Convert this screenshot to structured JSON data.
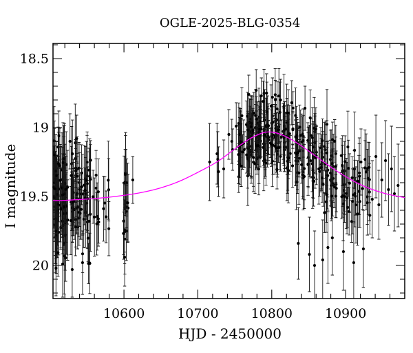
{
  "title": "OGLE-2025-BLG-0354",
  "colors": {
    "background": "#ffffff",
    "frame": "#000000",
    "points": "#000000",
    "error_bars": "#161616",
    "model_curve": "#ff00ff"
  },
  "chart_data": {
    "type": "scatter",
    "title": "OGLE-2025-BLG-0354",
    "xlabel": "HJD - 2450000",
    "ylabel": "I magnitude",
    "xlim": [
      10504,
      10980
    ],
    "ylim": [
      18.39,
      20.24
    ],
    "y_axis_inverted_magnitude": true,
    "grid": false,
    "x_ticks": [
      {
        "v": 10600,
        "label": "10600"
      },
      {
        "v": 10700,
        "label": "10700"
      },
      {
        "v": 10800,
        "label": "10800"
      },
      {
        "v": 10900,
        "label": "10900"
      }
    ],
    "x_minor_step": 20,
    "y_ticks": [
      {
        "v": 18.5,
        "label": "18.5"
      },
      {
        "v": 19,
        "label": "19"
      },
      {
        "v": 19.5,
        "label": "19.5"
      },
      {
        "v": 20,
        "label": "20"
      }
    ],
    "y_minor_step": 0.1,
    "model_curve": {
      "name": "microlensing-model-fit",
      "color": "#ff00ff",
      "baseline_mag": 19.53,
      "peak_mag": 19.03,
      "peak_hjd": 10795,
      "points": [
        [
          10504,
          19.53
        ],
        [
          10520,
          19.528
        ],
        [
          10540,
          19.522
        ],
        [
          10560,
          19.515
        ],
        [
          10580,
          19.505
        ],
        [
          10600,
          19.492
        ],
        [
          10620,
          19.475
        ],
        [
          10640,
          19.452
        ],
        [
          10660,
          19.42
        ],
        [
          10680,
          19.378
        ],
        [
          10700,
          19.325
        ],
        [
          10715,
          19.283
        ],
        [
          10730,
          19.235
        ],
        [
          10745,
          19.175
        ],
        [
          10758,
          19.125
        ],
        [
          10770,
          19.082
        ],
        [
          10780,
          19.055
        ],
        [
          10788,
          19.038
        ],
        [
          10795,
          19.032
        ],
        [
          10802,
          19.034
        ],
        [
          10810,
          19.045
        ],
        [
          10820,
          19.068
        ],
        [
          10830,
          19.098
        ],
        [
          10842,
          19.14
        ],
        [
          10855,
          19.19
        ],
        [
          10870,
          19.248
        ],
        [
          10885,
          19.305
        ],
        [
          10900,
          19.355
        ],
        [
          10915,
          19.4
        ],
        [
          10930,
          19.437
        ],
        [
          10945,
          19.465
        ],
        [
          10960,
          19.487
        ],
        [
          10980,
          19.508
        ]
      ]
    },
    "points": [
      [
        10612,
        19.38,
        0.17
      ],
      [
        10716,
        19.25,
        0.28
      ],
      [
        10726,
        19.19,
        0.22
      ],
      [
        10727,
        19.23,
        0.2
      ],
      [
        10728,
        19.32,
        0.18
      ],
      [
        10735,
        19.3,
        0.21
      ],
      [
        10742,
        19.05,
        0.18
      ],
      [
        10746,
        19.1,
        0.16
      ],
      [
        10747,
        19.16,
        0.15
      ],
      [
        10752,
        18.99,
        0.17
      ],
      [
        10508,
        20.02,
        0.2
      ],
      [
        10517,
        19.99,
        0.24
      ],
      [
        10530,
        20.03,
        0.2
      ],
      [
        10544,
        19.98,
        0.23
      ],
      [
        10601,
        19.94,
        0.21
      ],
      [
        10512,
        19.06,
        0.18
      ],
      [
        10527,
        19.1,
        0.2
      ],
      [
        10536,
        19.08,
        0.17
      ],
      [
        10769,
        18.76,
        0.14
      ],
      [
        10779,
        18.73,
        0.15
      ],
      [
        10786,
        18.77,
        0.13
      ],
      [
        10793,
        18.75,
        0.14
      ],
      [
        10801,
        18.78,
        0.14
      ],
      [
        10812,
        18.8,
        0.15
      ],
      [
        10827,
        18.82,
        0.16
      ],
      [
        10845,
        18.86,
        0.16
      ],
      [
        10836,
        19.84,
        0.26
      ],
      [
        10851,
        19.92,
        0.27
      ],
      [
        10858,
        20.0,
        0.25
      ],
      [
        10869,
        19.96,
        0.29
      ],
      [
        10876,
        19.87,
        0.26
      ],
      [
        10882,
        19.8,
        0.27
      ],
      [
        10897,
        19.9,
        0.28
      ],
      [
        10911,
        19.98,
        0.29
      ],
      [
        10924,
        19.88,
        0.28
      ],
      [
        10936,
        19.52,
        0.28
      ],
      [
        10941,
        19.21,
        0.3
      ],
      [
        10945,
        19.56,
        0.25
      ],
      [
        10949,
        19.38,
        0.27
      ],
      [
        10954,
        19.24,
        0.29
      ],
      [
        10958,
        19.45,
        0.26
      ],
      [
        10962,
        19.3,
        0.31
      ],
      [
        10966,
        19.48,
        0.27
      ],
      [
        10971,
        19.42,
        0.3
      ]
    ],
    "clusters": [
      {
        "t": [
          10505,
          10512
        ],
        "n": 40,
        "sigma": 0.19,
        "err": [
          0.14,
          0.32
        ]
      },
      {
        "t": [
          10513,
          10524
        ],
        "n": 40,
        "sigma": 0.19,
        "err": [
          0.14,
          0.32
        ]
      },
      {
        "t": [
          10528,
          10541
        ],
        "n": 40,
        "sigma": 0.18,
        "err": [
          0.13,
          0.3
        ]
      },
      {
        "t": [
          10542,
          10555
        ],
        "n": 28,
        "sigma": 0.18,
        "err": [
          0.13,
          0.3
        ]
      },
      {
        "t": [
          10557,
          10566
        ],
        "n": 9,
        "sigma": 0.15,
        "err": [
          0.15,
          0.3
        ]
      },
      {
        "t": [
          10568,
          10580
        ],
        "n": 6,
        "sigma": 0.14,
        "err": [
          0.15,
          0.3
        ]
      },
      {
        "t": [
          10598,
          10606
        ],
        "n": 16,
        "sigma": 0.17,
        "err": [
          0.14,
          0.3
        ]
      },
      {
        "t": [
          10755,
          10763
        ],
        "n": 20,
        "sigma": 0.12,
        "err": [
          0.1,
          0.22
        ]
      },
      {
        "t": [
          10765,
          10776
        ],
        "n": 34,
        "sigma": 0.13,
        "err": [
          0.1,
          0.22
        ]
      },
      {
        "t": [
          10777,
          10786
        ],
        "n": 30,
        "sigma": 0.13,
        "err": [
          0.1,
          0.22
        ]
      },
      {
        "t": [
          10788,
          10796
        ],
        "n": 26,
        "sigma": 0.12,
        "err": [
          0.1,
          0.22
        ]
      },
      {
        "t": [
          10798,
          10813
        ],
        "n": 34,
        "sigma": 0.12,
        "err": [
          0.1,
          0.22
        ]
      },
      {
        "t": [
          10815,
          10829
        ],
        "n": 30,
        "sigma": 0.12,
        "err": [
          0.11,
          0.24
        ]
      },
      {
        "t": [
          10832,
          10846
        ],
        "n": 28,
        "sigma": 0.13,
        "err": [
          0.11,
          0.24
        ]
      },
      {
        "t": [
          10848,
          10861
        ],
        "n": 26,
        "sigma": 0.13,
        "err": [
          0.11,
          0.25
        ]
      },
      {
        "t": [
          10863,
          10876
        ],
        "n": 24,
        "sigma": 0.14,
        "err": [
          0.12,
          0.26
        ]
      },
      {
        "t": [
          10878,
          10891
        ],
        "n": 20,
        "sigma": 0.14,
        "err": [
          0.12,
          0.26
        ]
      },
      {
        "t": [
          10893,
          10906
        ],
        "n": 18,
        "sigma": 0.14,
        "err": [
          0.12,
          0.27
        ]
      },
      {
        "t": [
          10908,
          10921
        ],
        "n": 16,
        "sigma": 0.14,
        "err": [
          0.13,
          0.28
        ]
      },
      {
        "t": [
          10923,
          10933
        ],
        "n": 12,
        "sigma": 0.14,
        "err": [
          0.13,
          0.28
        ]
      }
    ],
    "mag_clamp": [
      18.71,
      20.04
    ],
    "prng_seed": 42
  }
}
